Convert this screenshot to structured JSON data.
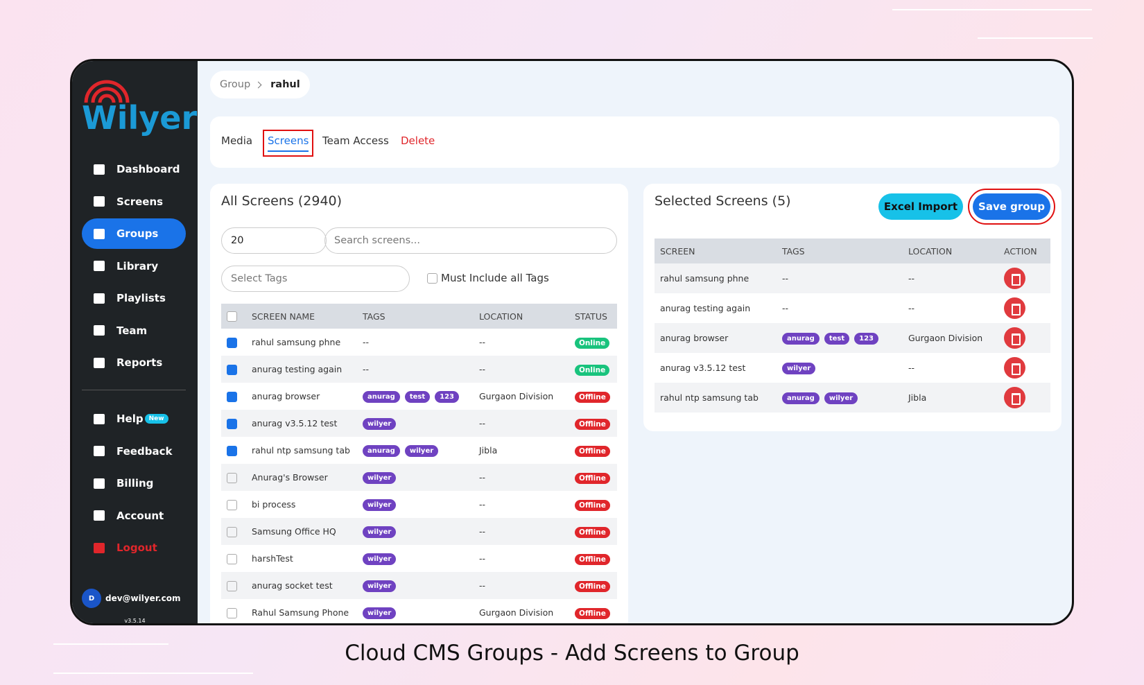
{
  "logo": "Wilyer",
  "sidebar": {
    "nav": [
      "Dashboard",
      "Screens",
      "Groups",
      "Library",
      "Playlists",
      "Team",
      "Reports"
    ],
    "active": 2,
    "nav2": [
      "Help",
      "Feedback",
      "Billing",
      "Account",
      "Logout"
    ],
    "help_badge": "New",
    "user": {
      "initial": "D",
      "email": "dev@wilyer.com",
      "version": "v3.5.14"
    }
  },
  "breadcrumb": [
    "Group",
    "rahul"
  ],
  "tabs": [
    "Media",
    "Screens",
    "Team Access",
    "Delete"
  ],
  "active_tab": 1,
  "all_screens": {
    "title": "All Screens (2940)",
    "page_size": "20",
    "search_placeholder": "Search screens...",
    "tags_placeholder": "Select Tags",
    "must_include": "Must Include all Tags",
    "columns": [
      "SCREEN NAME",
      "TAGS",
      "LOCATION",
      "STATUS"
    ],
    "rows": [
      {
        "name": "rahul samsung phne",
        "tags": "--",
        "location": "--",
        "status": "Online",
        "checked": true
      },
      {
        "name": "anurag testing again",
        "tags": "--",
        "location": "--",
        "status": "Online",
        "checked": true
      },
      {
        "name": "anurag browser",
        "tags": [
          "anurag",
          "test",
          "123"
        ],
        "location": "Gurgaon Division",
        "status": "Offline",
        "checked": true
      },
      {
        "name": "anurag v3.5.12 test",
        "tags": [
          "wilyer"
        ],
        "location": "--",
        "status": "Offline",
        "checked": true
      },
      {
        "name": "rahul ntp samsung tab",
        "tags": [
          "anurag",
          "wilyer"
        ],
        "location": "Jibla",
        "status": "Offline",
        "checked": true
      },
      {
        "name": "Anurag's Browser",
        "tags": [
          "wilyer"
        ],
        "location": "--",
        "status": "Offline",
        "checked": false
      },
      {
        "name": "bi process",
        "tags": [
          "wilyer"
        ],
        "location": "--",
        "status": "Offline",
        "checked": false
      },
      {
        "name": "Samsung Office HQ",
        "tags": [
          "wilyer"
        ],
        "location": "--",
        "status": "Offline",
        "checked": false
      },
      {
        "name": "harshTest",
        "tags": [
          "wilyer"
        ],
        "location": "--",
        "status": "Offline",
        "checked": false
      },
      {
        "name": "anurag socket test",
        "tags": [
          "wilyer"
        ],
        "location": "--",
        "status": "Offline",
        "checked": false
      },
      {
        "name": "Rahul Samsung Phone",
        "tags": [
          "wilyer"
        ],
        "location": "Gurgaon Division",
        "status": "Offline",
        "checked": false
      }
    ]
  },
  "selected_screens": {
    "title": "Selected Screens (5)",
    "buttons": [
      "Excel Import",
      "Save group"
    ],
    "columns": [
      "SCREEN",
      "TAGS",
      "LOCATION",
      "ACTION"
    ],
    "rows": [
      {
        "name": "rahul samsung phne",
        "tags": "--",
        "location": "--"
      },
      {
        "name": "anurag testing again",
        "tags": "--",
        "location": "--"
      },
      {
        "name": "anurag browser",
        "tags": [
          "anurag",
          "test",
          "123"
        ],
        "location": "Gurgaon Division"
      },
      {
        "name": "anurag v3.5.12 test",
        "tags": [
          "wilyer"
        ],
        "location": "--"
      },
      {
        "name": "rahul ntp samsung tab",
        "tags": [
          "anurag",
          "wilyer"
        ],
        "location": "Jibla"
      }
    ]
  },
  "caption": "Cloud CMS Groups - Add Screens to Group"
}
